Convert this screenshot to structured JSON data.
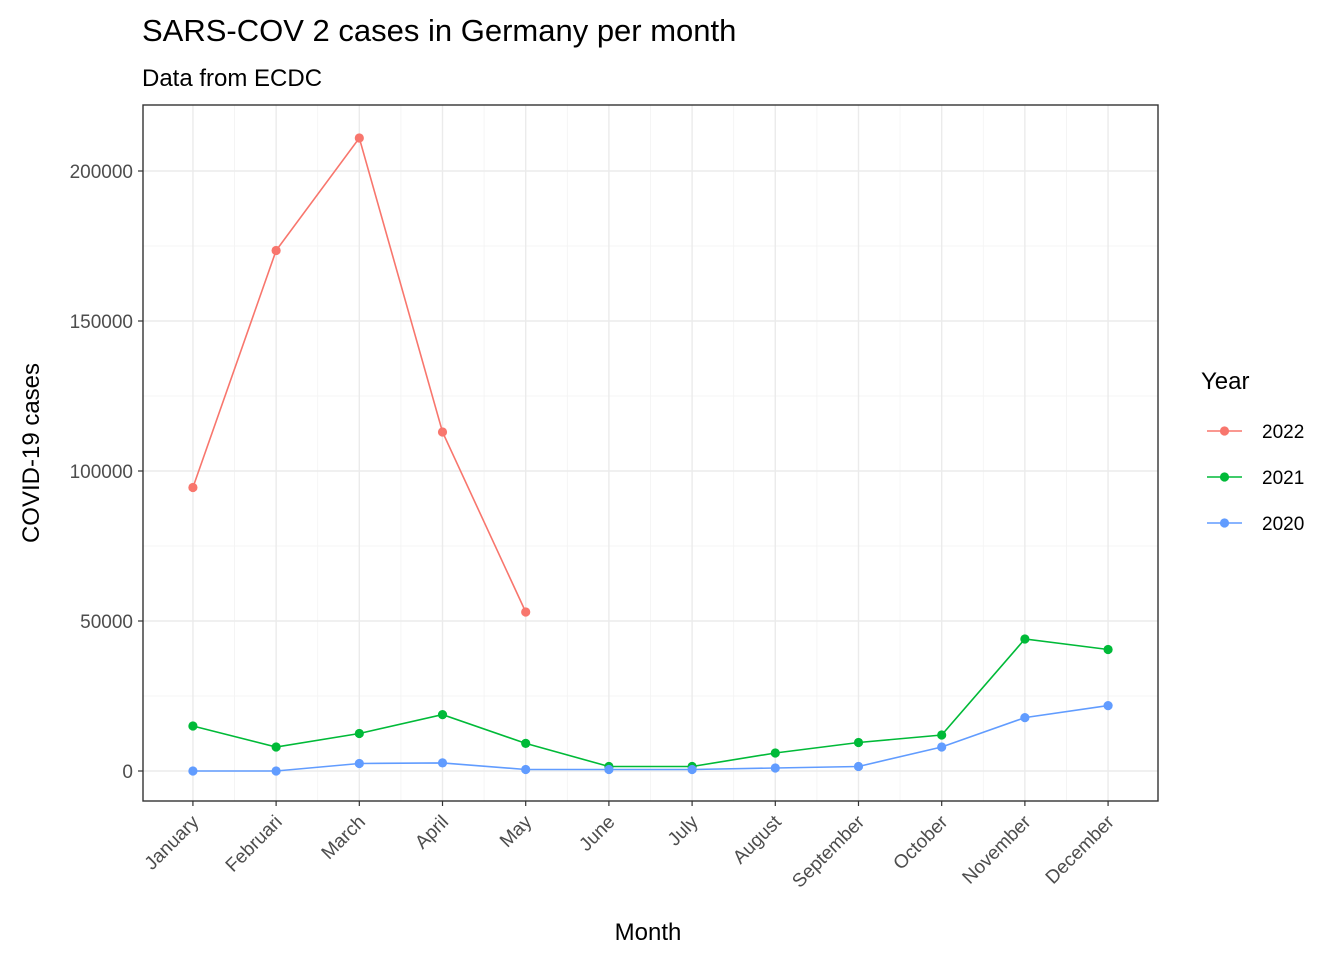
{
  "chart_data": {
    "type": "line",
    "title": "SARS-COV 2 cases in Germany per month",
    "subtitle": "Data from ECDC",
    "xlabel": "Month",
    "ylabel": "COVID-19 cases",
    "categories": [
      "January",
      "Februari",
      "March",
      "April",
      "May",
      "June",
      "July",
      "August",
      "September",
      "October",
      "November",
      "December"
    ],
    "ylim": [
      -10000,
      222000
    ],
    "yticks": [
      0,
      50000,
      100000,
      150000,
      200000
    ],
    "ytick_labels": [
      "0",
      "50000",
      "100000",
      "150000",
      "200000"
    ],
    "grid": true,
    "legend_title": "Year",
    "legend_position": "right",
    "series": [
      {
        "name": "2022",
        "color": "#F8766D",
        "values": [
          94500,
          173500,
          211000,
          113000,
          53000,
          null,
          null,
          null,
          null,
          null,
          null,
          null
        ]
      },
      {
        "name": "2021",
        "color": "#00BA38",
        "values": [
          15000,
          8000,
          12500,
          18800,
          9200,
          1500,
          1500,
          6000,
          9500,
          12000,
          44000,
          40500
        ]
      },
      {
        "name": "2020",
        "color": "#619CFF",
        "values": [
          0,
          0,
          2500,
          2700,
          500,
          500,
          500,
          1000,
          1500,
          8000,
          17800,
          21800
        ]
      }
    ]
  }
}
